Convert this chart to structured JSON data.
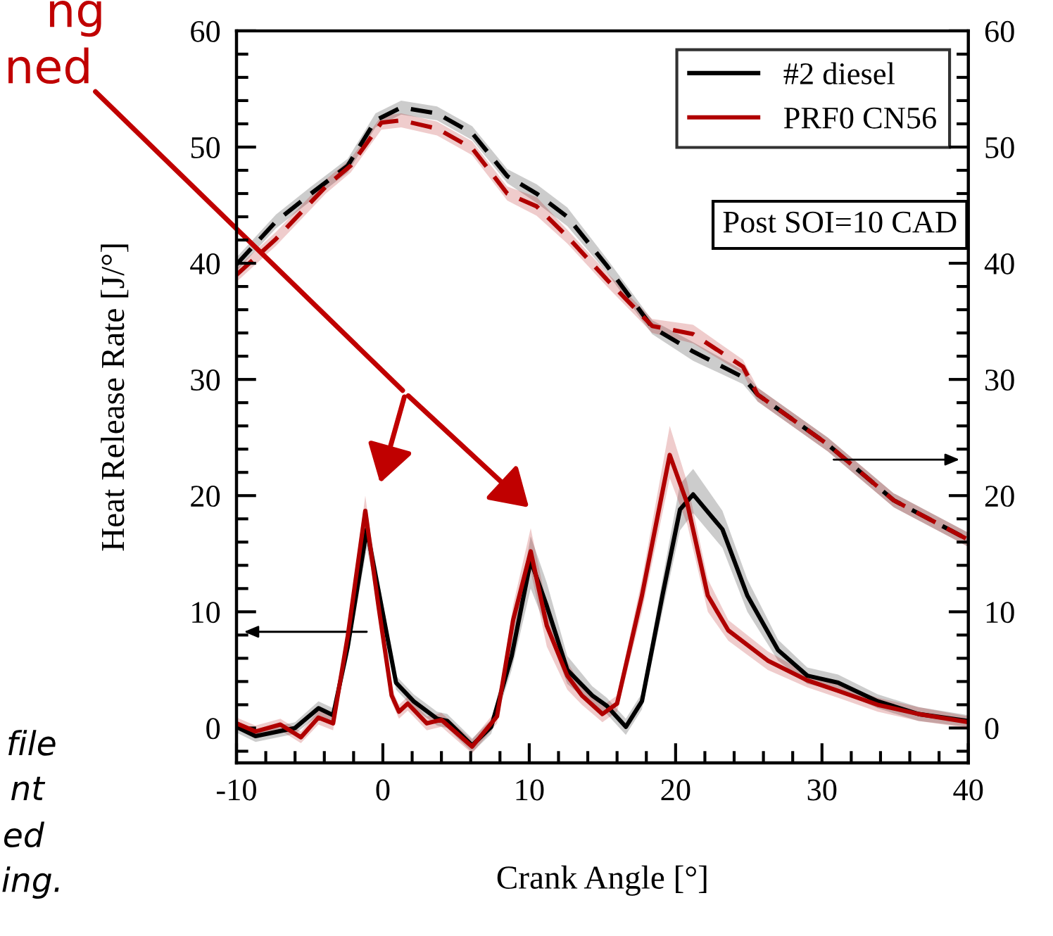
{
  "chart_data": {
    "type": "line",
    "xlabel": "Crank Angle [°]",
    "ylabel": "Heat Release Rate [J/°]",
    "xlim": [
      -10,
      40
    ],
    "xticks": [
      -10,
      0,
      10,
      20,
      30,
      40
    ],
    "ylim": [
      -3,
      60
    ],
    "yticks": [
      0,
      10,
      20,
      30,
      40,
      50,
      60
    ],
    "y2lim": [
      -3,
      60
    ],
    "y2ticks": [
      0,
      10,
      20,
      30,
      40,
      50,
      60
    ],
    "legend": "top right",
    "grid": false,
    "line_style": "solid",
    "marker": "none",
    "annotations": [
      "Post SOI=10 CAD",
      "ng",
      "ned",
      "file",
      "nt",
      "ed",
      "ing."
    ],
    "series": [
      {
        "name": "#2 diesel",
        "color": "#000000",
        "x": [
          -10,
          -8.7,
          -6,
          -4.4,
          -3.4,
          -2.4,
          -1.1,
          -0.1,
          0.9,
          2.1,
          3.7,
          4.4,
          6.1,
          7.4,
          8.8,
          10.1,
          11.2,
          12.6,
          14.3,
          15.3,
          16.6,
          17.7,
          19.1,
          20.3,
          21.2,
          23.2,
          24.9,
          27,
          29,
          31.1,
          33.8,
          36.6,
          40
        ],
        "values": [
          0.1,
          -0.7,
          0,
          1.7,
          1.1,
          7,
          17.1,
          10.5,
          3.9,
          2.3,
          0.8,
          0.6,
          -1.5,
          0.1,
          6.2,
          14.4,
          10.5,
          5,
          2.8,
          1.9,
          0.1,
          2.3,
          11.4,
          18.8,
          20.1,
          17.1,
          11.4,
          6.7,
          4.5,
          3.9,
          2.3,
          1.2,
          0.6
        ],
        "lower": [
          -0.4,
          -1.2,
          -0.5,
          1.1,
          0.5,
          6,
          15.5,
          9.5,
          3.3,
          1.7,
          0.2,
          0,
          -2.1,
          -0.5,
          5,
          12,
          8.5,
          3.8,
          2,
          1.2,
          -0.6,
          1.6,
          10,
          17,
          18.5,
          15.5,
          10,
          5.8,
          3.8,
          3.2,
          1.7,
          0.6,
          0.1
        ],
        "upper": [
          0.6,
          -0.2,
          0.5,
          2.3,
          1.7,
          8,
          18.5,
          11.5,
          4.5,
          2.9,
          1.4,
          1.2,
          -0.9,
          0.7,
          7.4,
          16.5,
          12.5,
          6.2,
          3.6,
          2.6,
          0.8,
          3,
          12.8,
          21,
          22.3,
          18.7,
          12.8,
          7.6,
          5.2,
          4.6,
          2.9,
          1.8,
          1.1
        ]
      },
      {
        "name": "PRF0 CN56",
        "color": "#b00000",
        "x": [
          -10,
          -8.7,
          -7,
          -5.6,
          -4.4,
          -3.4,
          -2.4,
          -1.2,
          -0.3,
          0.6,
          1.1,
          1.7,
          3,
          4,
          6.1,
          7.8,
          8.9,
          10.1,
          11.2,
          12.6,
          13.6,
          15,
          16,
          17.7,
          19.6,
          20.8,
          22.2,
          23.6,
          26.3,
          29,
          31.1,
          33.8,
          36.6,
          40
        ],
        "values": [
          0.4,
          -0.3,
          0.3,
          -0.8,
          0.9,
          0.4,
          7.9,
          18.7,
          10.5,
          2.8,
          1.4,
          2.1,
          0.4,
          0.7,
          -1.6,
          1,
          9.3,
          15.2,
          8.8,
          4.5,
          2.8,
          1.2,
          2.1,
          11.4,
          23.5,
          19.3,
          11.4,
          8.4,
          5.8,
          4.1,
          3.2,
          2,
          1.2,
          0.5
        ],
        "lower": [
          -0.1,
          -0.8,
          -0.2,
          -1.3,
          0.3,
          -0.2,
          7,
          17,
          9.5,
          2.2,
          0.8,
          1.5,
          -0.2,
          0.1,
          -2.2,
          0.4,
          8,
          13.5,
          7,
          3.3,
          2,
          0.5,
          1.4,
          10,
          21.5,
          17.5,
          10,
          7.5,
          5,
          3.5,
          2.6,
          1.4,
          0.6,
          0
        ],
        "upper": [
          0.9,
          0.2,
          0.8,
          -0.3,
          1.5,
          1,
          8.8,
          20,
          11.5,
          3.4,
          2,
          2.7,
          1,
          1.3,
          -1,
          1.6,
          10.6,
          17.2,
          10.6,
          5.7,
          3.6,
          1.9,
          2.8,
          12.8,
          26,
          21.1,
          12.8,
          9.3,
          6.6,
          4.7,
          3.8,
          2.6,
          1.8,
          1
        ]
      },
      {
        "color": "#000000",
        "axis": "y2",
        "line_style": "dashed",
        "x": [
          -10,
          -7.3,
          -4.9,
          -2.4,
          -0.5,
          1.25,
          3.7,
          6.1,
          8.5,
          10.5,
          12.6,
          15.3,
          18.4,
          21.2,
          24.6,
          25.6,
          30.4,
          34.9,
          40
        ],
        "values": [
          39.9,
          43.6,
          46,
          48.4,
          52.3,
          53.4,
          52.9,
          51.2,
          47.5,
          46,
          44,
          39.8,
          34.5,
          32.4,
          30.2,
          28.7,
          24.4,
          19.6,
          16.2
        ],
        "lower": [
          39.3,
          43,
          45.4,
          47.8,
          51.7,
          52.8,
          52.3,
          50.6,
          46.9,
          45.2,
          43.2,
          39.2,
          33.9,
          31.6,
          29.6,
          28.1,
          23.8,
          19,
          15.6
        ],
        "upper": [
          40.5,
          44.2,
          46.6,
          49,
          52.9,
          54,
          53.5,
          51.8,
          48.1,
          46.8,
          44.8,
          40.4,
          35.1,
          33.2,
          30.8,
          29.3,
          25,
          20.2,
          16.8
        ]
      },
      {
        "color": "#b00000",
        "axis": "y2",
        "line_style": "dashed",
        "x": [
          -10,
          -7.3,
          -3.9,
          -2.2,
          -0.1,
          1.25,
          3.7,
          6.1,
          8.5,
          10.5,
          12.6,
          15.3,
          18.4,
          21.2,
          24.6,
          25.6,
          30.4,
          34.9,
          40
        ],
        "values": [
          39,
          42.1,
          46.6,
          48.4,
          52.1,
          52.3,
          51.6,
          49.9,
          46,
          44.9,
          42.3,
          38.6,
          34.6,
          33.9,
          31.1,
          28.7,
          24.4,
          19.6,
          16.2
        ],
        "lower": [
          38.4,
          41.5,
          46,
          47.8,
          51.5,
          51.7,
          51,
          49.3,
          45.4,
          44.1,
          41.7,
          38,
          34,
          33.1,
          30.5,
          28.1,
          23.8,
          19,
          15.6
        ],
        "upper": [
          39.6,
          42.7,
          47.2,
          49,
          52.7,
          52.9,
          52.2,
          50.5,
          46.6,
          45.7,
          42.9,
          39.2,
          35.2,
          34.7,
          31.7,
          29.3,
          25,
          20.2,
          16.8
        ]
      }
    ]
  }
}
